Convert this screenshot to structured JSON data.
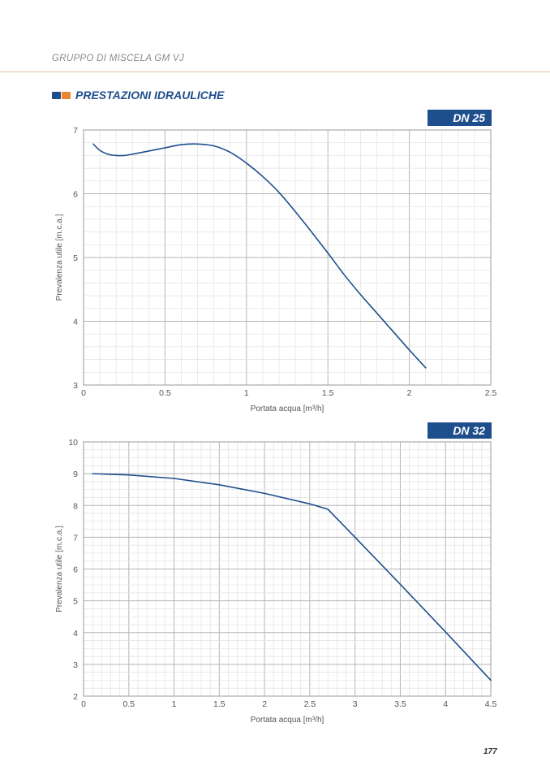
{
  "header": {
    "title": "GRUPPO DI MISCELA GM VJ"
  },
  "section": {
    "title": "PRESTAZIONI IDRAULICHE"
  },
  "colors": {
    "accent_blue": "#1f4e8c",
    "accent_orange": "#e9872f",
    "grid": "#c8c8c8",
    "curve": "#1f4e8c"
  },
  "chart_data": [
    {
      "type": "line",
      "badge": "DN 25",
      "xlabel": "Portata acqua [m³/h]",
      "ylabel": "Prevalenza utile [m.c.a.]",
      "xlim": [
        0,
        2.5
      ],
      "ylim": [
        3,
        7
      ],
      "x_ticks": [
        "0",
        "0.5",
        "1",
        "1.5",
        "2",
        "2.5"
      ],
      "y_ticks": [
        "3",
        "4",
        "5",
        "6",
        "7"
      ],
      "grid": true,
      "series": [
        {
          "x": [
            0.06,
            0.1,
            0.15,
            0.2,
            0.25,
            0.3,
            0.4,
            0.5,
            0.6,
            0.7,
            0.8,
            0.9,
            1.0,
            1.1,
            1.2,
            1.3,
            1.4,
            1.5,
            1.6,
            1.7,
            1.8,
            1.9,
            2.0,
            2.1
          ],
          "y": [
            6.78,
            6.68,
            6.62,
            6.6,
            6.6,
            6.62,
            6.67,
            6.72,
            6.77,
            6.78,
            6.75,
            6.65,
            6.48,
            6.27,
            6.02,
            5.72,
            5.4,
            5.07,
            4.73,
            4.42,
            4.13,
            3.84,
            3.55,
            3.27
          ]
        }
      ]
    },
    {
      "type": "line",
      "badge": "DN 32",
      "xlabel": "Portata acqua [m³/h]",
      "ylabel": "Prevalenza utile [m.c.a.]",
      "xlim": [
        0,
        4.5
      ],
      "ylim": [
        2,
        10
      ],
      "x_ticks": [
        "0",
        "0.5",
        "1",
        "1.5",
        "2",
        "2.5",
        "3",
        "3.5",
        "4",
        "4.5"
      ],
      "y_ticks": [
        "2",
        "3",
        "4",
        "5",
        "6",
        "7",
        "8",
        "9",
        "10"
      ],
      "grid": true,
      "series": [
        {
          "x": [
            0.1,
            0.5,
            1.0,
            1.5,
            2.0,
            2.5,
            2.7,
            3.0,
            3.5,
            4.0,
            4.5
          ],
          "y": [
            9.0,
            8.96,
            8.85,
            8.65,
            8.38,
            8.05,
            7.88,
            7.0,
            5.52,
            4.02,
            2.5
          ]
        }
      ]
    }
  ],
  "page": {
    "number": "177"
  }
}
